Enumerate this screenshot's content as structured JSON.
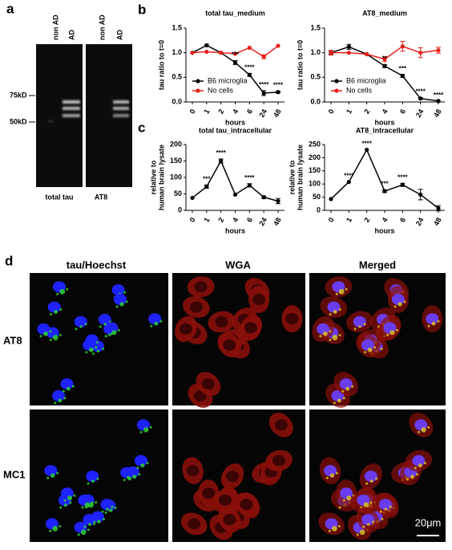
{
  "panel_labels": [
    "a",
    "b",
    "c",
    "d"
  ],
  "blot": {
    "lane_labels": [
      "non AD",
      "AD",
      "non AD",
      "AD"
    ],
    "markers": [
      "75kD",
      "50kD"
    ],
    "panel_titles": [
      "total tau",
      "AT8"
    ]
  },
  "microscopy": {
    "columns": [
      "tau/Hoechst",
      "WGA",
      "Merged"
    ],
    "rows": [
      "AT8",
      "MC1"
    ],
    "scale_bar": "20μm"
  },
  "chart_data": [
    {
      "type": "line",
      "title": "total tau_medium",
      "ylabel": [
        "tau ratio to t=0"
      ],
      "xlabel": "hours",
      "categories": [
        "0",
        "1",
        "2",
        "4",
        "6",
        "24",
        "48"
      ],
      "series": [
        {
          "name": "B6 microglia",
          "color": "#000000",
          "values": [
            1.0,
            1.15,
            1.0,
            0.8,
            0.55,
            0.18,
            0.2
          ],
          "errors": [
            null,
            0.02,
            null,
            0.04,
            0.03,
            0.05,
            0.02
          ]
        },
        {
          "name": "No cells",
          "color": "#e8201c",
          "values": [
            1.0,
            1.02,
            1.0,
            0.98,
            1.1,
            0.92,
            1.14
          ],
          "errors": [
            null,
            null,
            null,
            null,
            null,
            0.04,
            null
          ]
        }
      ],
      "significance": [
        null,
        null,
        null,
        "***",
        "****",
        "****",
        "****"
      ],
      "ylim": [
        0,
        1.5
      ],
      "yticks": [
        {
          "value": 0,
          "label": "0.0"
        },
        0.5,
        {
          "value": 1,
          "label": "1.0"
        },
        1.5
      ],
      "legend": "lower left"
    },
    {
      "type": "line",
      "title": "AT8_medium",
      "ylabel": [
        "tau ratio to t=0"
      ],
      "xlabel": "hours",
      "categories": [
        "0",
        "1",
        "2",
        "4",
        "6",
        "24",
        "48"
      ],
      "series": [
        {
          "name": "B6 microglia",
          "color": "#000000",
          "values": [
            1.0,
            1.12,
            0.97,
            0.73,
            0.53,
            0.07,
            0.02
          ],
          "errors": [
            0.03,
            0.05,
            null,
            0.03,
            0.03,
            0.02,
            null
          ]
        },
        {
          "name": "No cells",
          "color": "#e8201c",
          "values": [
            1.0,
            1.0,
            0.97,
            0.87,
            1.13,
            1.0,
            1.05
          ],
          "errors": [
            0.05,
            null,
            null,
            0.05,
            0.1,
            0.1,
            0.06
          ]
        }
      ],
      "significance": [
        null,
        null,
        null,
        "**",
        "***",
        "****",
        "****"
      ],
      "ylim": [
        0,
        1.5
      ],
      "yticks": [
        {
          "value": 0,
          "label": "0.0"
        },
        0.5,
        {
          "value": 1,
          "label": "1.0"
        },
        1.5
      ],
      "legend": "lower left"
    },
    {
      "type": "line",
      "title": "total tau_intracellular",
      "ylabel": [
        "relative to",
        "human brain lysate"
      ],
      "xlabel": "hours",
      "categories": [
        "0",
        "1",
        "2",
        "4",
        "6",
        "24",
        "48"
      ],
      "series": [
        {
          "color": "#000000",
          "values": [
            38,
            72,
            150,
            48,
            76,
            40,
            28
          ],
          "errors": [
            null,
            5,
            6,
            null,
            5,
            4,
            8
          ]
        }
      ],
      "significance": [
        null,
        "***",
        "****",
        null,
        "****",
        null,
        null
      ],
      "ylim": [
        0,
        200
      ],
      "yticks": [
        0,
        50,
        100,
        150,
        200
      ]
    },
    {
      "type": "line",
      "title": "AT8_intracellular",
      "ylabel": [
        "relative to",
        "human brain lysate"
      ],
      "xlabel": "hours",
      "categories": [
        "0",
        "1",
        "2",
        "4",
        "6",
        "24",
        "48"
      ],
      "series": [
        {
          "color": "#000000",
          "values": [
            43,
            108,
            230,
            73,
            97,
            60,
            8
          ],
          "errors": [
            null,
            null,
            null,
            5,
            6,
            20,
            10
          ]
        }
      ],
      "significance": [
        null,
        "****",
        "****",
        "***",
        "****",
        null,
        null
      ],
      "ylim": [
        0,
        250
      ],
      "yticks": [
        0,
        50,
        100,
        150,
        200,
        250
      ]
    }
  ]
}
